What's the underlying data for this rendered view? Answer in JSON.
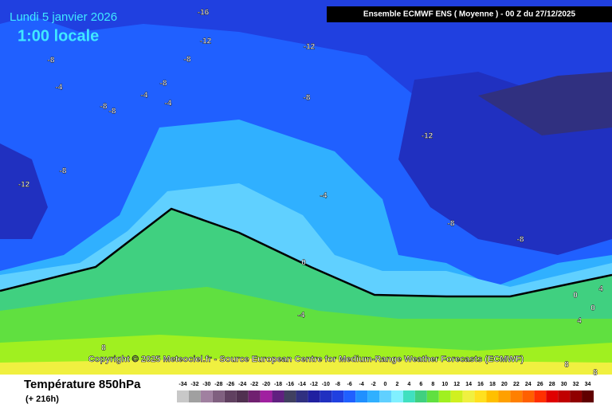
{
  "header": {
    "date": "Lundi 5 janvier 2026",
    "time": "1:00 locale",
    "source": "Ensemble ECMWF ENS  ( Moyenne )  -  00 Z du 27/12/2025"
  },
  "copyright": "Copyright © 2025 Meteociel.fr - Source European Centre for Medium-Range Weather Forecasts (ECMWF)",
  "footer": {
    "title": "Température 850hPa",
    "lead": "(+ 216h)"
  },
  "contour_labels": [
    "-16",
    "-12",
    "-12",
    "-8",
    "-8",
    "-4",
    "-8",
    "-4",
    "-4",
    "-8",
    "-8",
    "-8",
    "-12",
    "-8",
    "-12",
    "-4",
    "-8",
    "-8",
    "0",
    "-4",
    "0",
    "4",
    "0",
    "4",
    "8",
    "8",
    "8"
  ],
  "scale": {
    "ticks": [
      -34,
      -32,
      -30,
      -28,
      -26,
      -24,
      -22,
      -20,
      -18,
      -16,
      -14,
      -12,
      -10,
      -8,
      -6,
      -4,
      -2,
      0,
      2,
      4,
      6,
      8,
      10,
      12,
      14,
      16,
      18,
      20,
      22,
      24,
      26,
      28,
      30,
      32,
      34
    ],
    "colors": [
      "#c8c8c8",
      "#a0a0a0",
      "#a080a0",
      "#806080",
      "#604060",
      "#503050",
      "#702070",
      "#a020a0",
      "#602080",
      "#404060",
      "#303080",
      "#2020a0",
      "#2030c0",
      "#2040e0",
      "#2060ff",
      "#2090ff",
      "#30b0ff",
      "#60d0ff",
      "#80f0ff",
      "#40e0c0",
      "#40d080",
      "#60e040",
      "#a0f020",
      "#d0f020",
      "#f0f040",
      "#ffe020",
      "#ffc000",
      "#ffa000",
      "#ff8000",
      "#ff6000",
      "#ff3000",
      "#e00000",
      "#c00000",
      "#900000",
      "#600000"
    ]
  }
}
